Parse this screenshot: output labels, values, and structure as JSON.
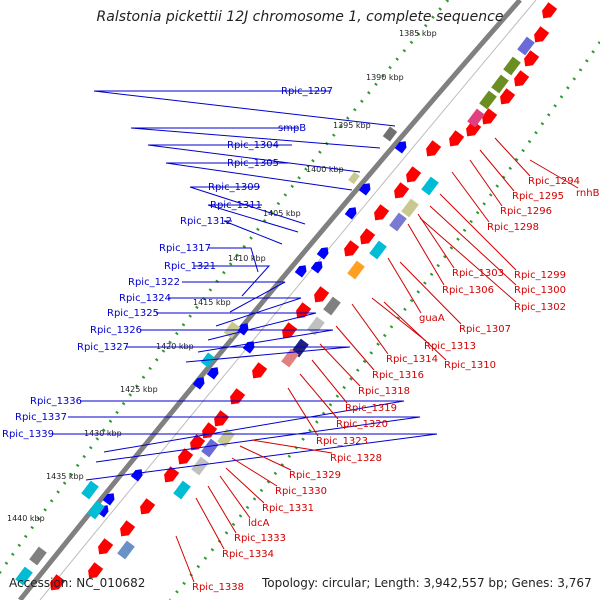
{
  "title": "Ralstonia pickettii 12J chromosome 1, complete sequence",
  "accession": "Accession: NC_010682",
  "topology": "Topology: circular; Length: 3,942,557 bp; Genes: 3,767",
  "colors": {
    "backbone": "#808080",
    "ruler_dot": "#2f9a2f",
    "plus_label": "#0000cc",
    "minus_label": "#d00000",
    "gene_red": "#ff0000",
    "gene_blue": "#0000ff"
  },
  "ruler": [
    {
      "label": "1385 kbp"
    },
    {
      "label": "1390 kbp"
    },
    {
      "label": "1395 kbp"
    },
    {
      "label": "1400 kbp"
    },
    {
      "label": "1405 kbp"
    },
    {
      "label": "1410 kbp"
    },
    {
      "label": "1415 kbp"
    },
    {
      "label": "1420 kbp"
    },
    {
      "label": "1425 kbp"
    },
    {
      "label": "1430 kbp"
    },
    {
      "label": "1435 kbp"
    },
    {
      "label": "1440 kbp"
    }
  ],
  "plus_labels": [
    {
      "text": "Rpic_1297"
    },
    {
      "text": "smpB"
    },
    {
      "text": "Rpic_1304"
    },
    {
      "text": "Rpic_1305"
    },
    {
      "text": "Rpic_1309"
    },
    {
      "text": "Rpic_1311"
    },
    {
      "text": "Rpic_1312"
    },
    {
      "text": "Rpic_1317"
    },
    {
      "text": "Rpic_1321"
    },
    {
      "text": "Rpic_1322"
    },
    {
      "text": "Rpic_1324"
    },
    {
      "text": "Rpic_1325"
    },
    {
      "text": "Rpic_1326"
    },
    {
      "text": "Rpic_1327"
    },
    {
      "text": "Rpic_1336"
    },
    {
      "text": "Rpic_1337"
    },
    {
      "text": "Rpic_1339"
    }
  ],
  "minus_labels": [
    {
      "text": "Rpic_1294"
    },
    {
      "text": "rnhB"
    },
    {
      "text": "Rpic_1295"
    },
    {
      "text": "Rpic_1296"
    },
    {
      "text": "Rpic_1298"
    },
    {
      "text": "Rpic_1299"
    },
    {
      "text": "Rpic_1303"
    },
    {
      "text": "Rpic_1300"
    },
    {
      "text": "Rpic_1306"
    },
    {
      "text": "Rpic_1302"
    },
    {
      "text": "guaA"
    },
    {
      "text": "Rpic_1307"
    },
    {
      "text": "Rpic_1313"
    },
    {
      "text": "Rpic_1314"
    },
    {
      "text": "Rpic_1310"
    },
    {
      "text": "Rpic_1316"
    },
    {
      "text": "Rpic_1318"
    },
    {
      "text": "Rpic_1319"
    },
    {
      "text": "Rpic_1320"
    },
    {
      "text": "Rpic_1323"
    },
    {
      "text": "Rpic_1328"
    },
    {
      "text": "Rpic_1329"
    },
    {
      "text": "Rpic_1330"
    },
    {
      "text": "Rpic_1331"
    },
    {
      "text": "ldcA"
    },
    {
      "text": "Rpic_1333"
    },
    {
      "text": "Rpic_1334"
    },
    {
      "text": "Rpic_1338"
    }
  ]
}
